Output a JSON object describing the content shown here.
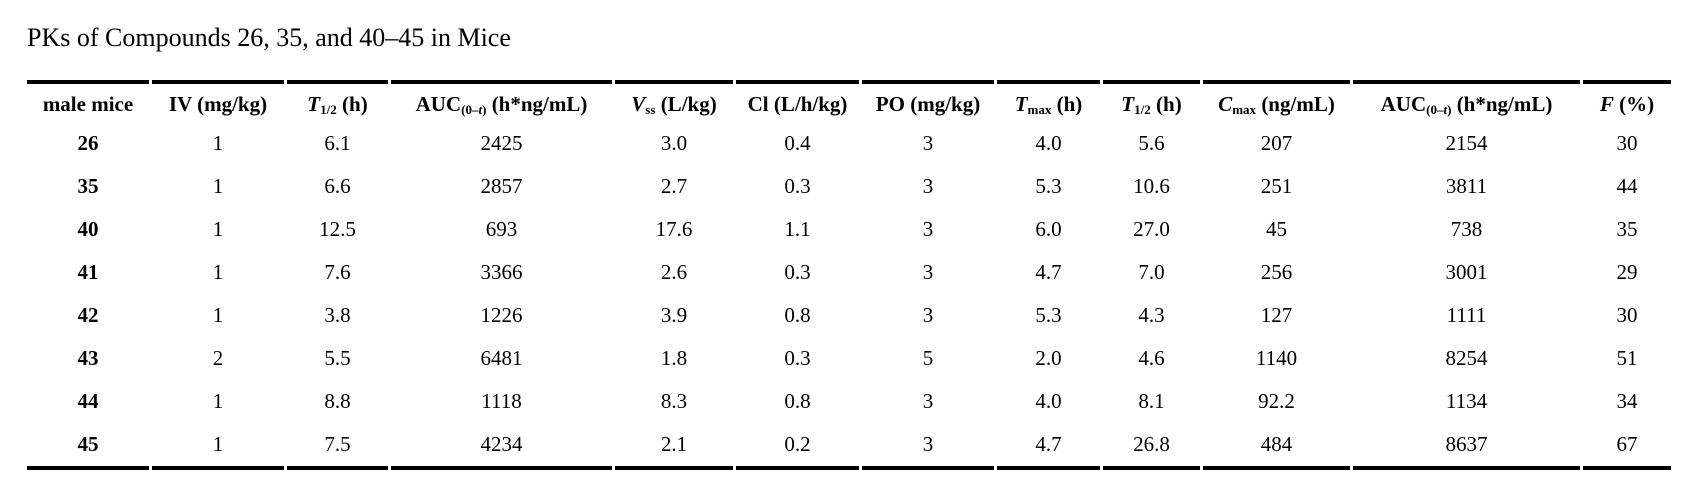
{
  "title": "PKs of Compounds 26, 35, and 40–45 in Mice",
  "table": {
    "headers": [
      {
        "key": "male-mice",
        "parts": [
          {
            "t": "male mice"
          }
        ]
      },
      {
        "key": "iv-dose",
        "parts": [
          {
            "t": "IV (mg/kg)"
          }
        ]
      },
      {
        "key": "iv-t-half",
        "parts": [
          {
            "t": "T",
            "i": true
          },
          {
            "t": "1/2",
            "sub": true
          },
          {
            "t": " (h)"
          }
        ]
      },
      {
        "key": "iv-auc",
        "parts": [
          {
            "t": "AUC"
          },
          {
            "t": "(0–",
            "sub": true
          },
          {
            "t": "t",
            "sub": true,
            "i": true
          },
          {
            "t": ")",
            "sub": true
          },
          {
            "t": " (h*ng/mL)"
          }
        ]
      },
      {
        "key": "vss",
        "parts": [
          {
            "t": "V",
            "i": true
          },
          {
            "t": "ss",
            "sub": true
          },
          {
            "t": " (L/kg)"
          }
        ]
      },
      {
        "key": "cl",
        "parts": [
          {
            "t": "Cl (L/h/kg)"
          }
        ]
      },
      {
        "key": "po-dose",
        "parts": [
          {
            "t": "PO (mg/kg)"
          }
        ]
      },
      {
        "key": "tmax",
        "parts": [
          {
            "t": "T",
            "i": true
          },
          {
            "t": "max",
            "sub": true
          },
          {
            "t": " (h)"
          }
        ]
      },
      {
        "key": "po-t-half",
        "parts": [
          {
            "t": "T",
            "i": true
          },
          {
            "t": "1/2",
            "sub": true
          },
          {
            "t": " (h)"
          }
        ]
      },
      {
        "key": "cmax",
        "parts": [
          {
            "t": "C",
            "i": true
          },
          {
            "t": "max",
            "sub": true
          },
          {
            "t": " (ng/mL)"
          }
        ]
      },
      {
        "key": "po-auc",
        "parts": [
          {
            "t": "AUC"
          },
          {
            "t": "(0–",
            "sub": true
          },
          {
            "t": "t",
            "sub": true,
            "i": true
          },
          {
            "t": ")",
            "sub": true
          },
          {
            "t": " (h*ng/mL)"
          }
        ]
      },
      {
        "key": "f-percent",
        "parts": [
          {
            "t": "F",
            "i": true
          },
          {
            "t": " (%)"
          }
        ]
      }
    ],
    "rows": [
      {
        "compound": "26",
        "values": [
          "1",
          "6.1",
          "2425",
          "3.0",
          "0.4",
          "3",
          "4.0",
          "5.6",
          "207",
          "2154",
          "30"
        ]
      },
      {
        "compound": "35",
        "values": [
          "1",
          "6.6",
          "2857",
          "2.7",
          "0.3",
          "3",
          "5.3",
          "10.6",
          "251",
          "3811",
          "44"
        ]
      },
      {
        "compound": "40",
        "values": [
          "1",
          "12.5",
          "693",
          "17.6",
          "1.1",
          "3",
          "6.0",
          "27.0",
          "45",
          "738",
          "35"
        ]
      },
      {
        "compound": "41",
        "values": [
          "1",
          "7.6",
          "3366",
          "2.6",
          "0.3",
          "3",
          "4.7",
          "7.0",
          "256",
          "3001",
          "29"
        ]
      },
      {
        "compound": "42",
        "values": [
          "1",
          "3.8",
          "1226",
          "3.9",
          "0.8",
          "3",
          "5.3",
          "4.3",
          "127",
          "1111",
          "30"
        ]
      },
      {
        "compound": "43",
        "values": [
          "2",
          "5.5",
          "6481",
          "1.8",
          "0.3",
          "5",
          "2.0",
          "4.6",
          "1140",
          "8254",
          "51"
        ]
      },
      {
        "compound": "44",
        "values": [
          "1",
          "8.8",
          "1118",
          "8.3",
          "0.8",
          "3",
          "4.0",
          "8.1",
          "92.2",
          "1134",
          "34"
        ]
      },
      {
        "compound": "45",
        "values": [
          "1",
          "7.5",
          "4234",
          "2.1",
          "0.2",
          "3",
          "4.7",
          "26.8",
          "484",
          "8637",
          "67"
        ]
      }
    ]
  }
}
